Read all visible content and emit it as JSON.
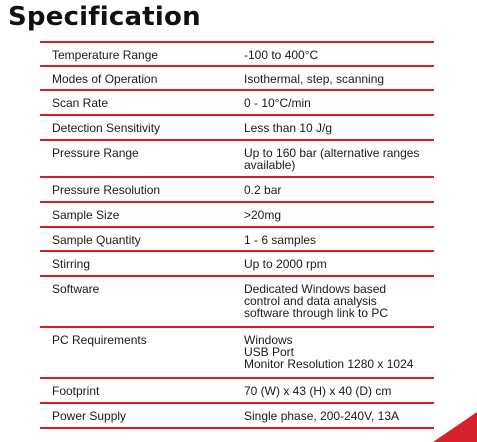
{
  "page": {
    "title": "Specification",
    "accent_color": "#d6202a"
  },
  "spec_rows": [
    {
      "label": "Temperature Range",
      "value": "-100 to 400°C"
    },
    {
      "label": "Modes of Operation",
      "value": "Isothermal, step, scanning"
    },
    {
      "label": "Scan Rate",
      "value": "0 - 10°C/min"
    },
    {
      "label": "Detection Sensitivity",
      "value": "Less than 10 J/g"
    },
    {
      "label": "Pressure Range",
      "value": "Up to 160 bar (alternative ranges\navailable)"
    },
    {
      "label": "Pressure Resolution",
      "value": "0.2 bar"
    },
    {
      "label": "Sample Size",
      "value": ">20mg"
    },
    {
      "label": "Sample Quantity",
      "value": "1 - 6 samples"
    },
    {
      "label": "Stirring",
      "value": "Up to 2000 rpm"
    },
    {
      "label": "Software",
      "value": "Dedicated Windows based\ncontrol and data analysis\nsoftware through link to PC"
    },
    {
      "label": "PC Requirements",
      "value": "Windows\nUSB Port\nMonitor Resolution 1280 x 1024"
    },
    {
      "label": "Footprint",
      "value": "70 (W) x 43 (H) x 40 (D) cm"
    },
    {
      "label": "Power Supply",
      "value": "Single phase, 200-240V, 13A"
    }
  ]
}
